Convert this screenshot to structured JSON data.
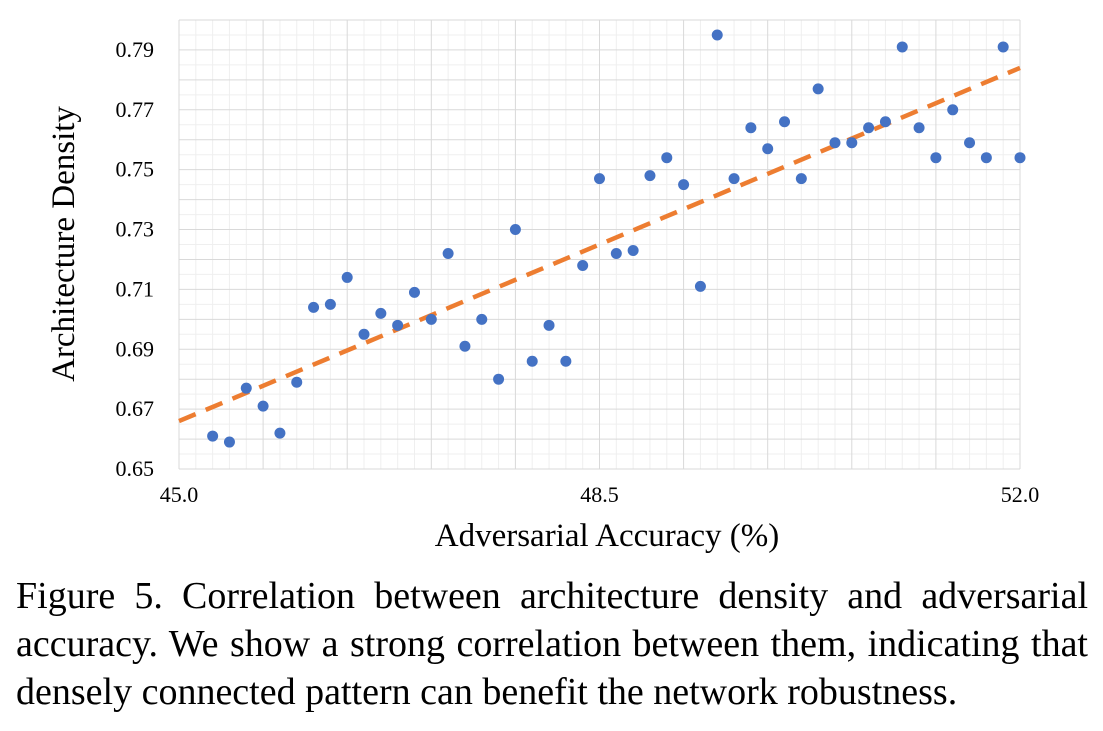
{
  "chart_data": {
    "type": "scatter",
    "xlabel": "Adversarial Accuracy (%)",
    "ylabel": "Architecture Density",
    "xlim": [
      45.0,
      52.0
    ],
    "ylim": [
      0.65,
      0.8
    ],
    "x_ticks": [
      "45.0",
      "48.5",
      "52.0"
    ],
    "y_ticks": [
      "0.65",
      "0.67",
      "0.69",
      "0.71",
      "0.73",
      "0.75",
      "0.77",
      "0.79"
    ],
    "grid": true,
    "point_color": "#4472C4",
    "trendline": {
      "style": "dashed",
      "color": "#ED7D31",
      "x": [
        45.0,
        52.0
      ],
      "y": [
        0.666,
        0.784
      ]
    },
    "points": [
      {
        "x": 45.28,
        "y": 0.661
      },
      {
        "x": 45.42,
        "y": 0.659
      },
      {
        "x": 45.56,
        "y": 0.677
      },
      {
        "x": 45.7,
        "y": 0.671
      },
      {
        "x": 45.84,
        "y": 0.662
      },
      {
        "x": 45.98,
        "y": 0.679
      },
      {
        "x": 46.12,
        "y": 0.704
      },
      {
        "x": 46.26,
        "y": 0.705
      },
      {
        "x": 46.4,
        "y": 0.714
      },
      {
        "x": 46.54,
        "y": 0.695
      },
      {
        "x": 46.68,
        "y": 0.702
      },
      {
        "x": 46.82,
        "y": 0.698
      },
      {
        "x": 46.96,
        "y": 0.709
      },
      {
        "x": 47.1,
        "y": 0.7
      },
      {
        "x": 47.24,
        "y": 0.722
      },
      {
        "x": 47.38,
        "y": 0.691
      },
      {
        "x": 47.52,
        "y": 0.7
      },
      {
        "x": 47.66,
        "y": 0.68
      },
      {
        "x": 47.8,
        "y": 0.73
      },
      {
        "x": 47.94,
        "y": 0.686
      },
      {
        "x": 48.08,
        "y": 0.698
      },
      {
        "x": 48.22,
        "y": 0.686
      },
      {
        "x": 48.36,
        "y": 0.718
      },
      {
        "x": 48.5,
        "y": 0.747
      },
      {
        "x": 48.64,
        "y": 0.722
      },
      {
        "x": 48.78,
        "y": 0.723
      },
      {
        "x": 48.92,
        "y": 0.748
      },
      {
        "x": 49.06,
        "y": 0.754
      },
      {
        "x": 49.2,
        "y": 0.745
      },
      {
        "x": 49.34,
        "y": 0.711
      },
      {
        "x": 49.48,
        "y": 0.795
      },
      {
        "x": 49.62,
        "y": 0.747
      },
      {
        "x": 49.76,
        "y": 0.764
      },
      {
        "x": 49.9,
        "y": 0.757
      },
      {
        "x": 50.04,
        "y": 0.766
      },
      {
        "x": 50.18,
        "y": 0.747
      },
      {
        "x": 50.32,
        "y": 0.777
      },
      {
        "x": 50.46,
        "y": 0.759
      },
      {
        "x": 50.6,
        "y": 0.759
      },
      {
        "x": 50.74,
        "y": 0.764
      },
      {
        "x": 50.88,
        "y": 0.766
      },
      {
        "x": 51.02,
        "y": 0.791
      },
      {
        "x": 51.16,
        "y": 0.764
      },
      {
        "x": 51.3,
        "y": 0.754
      },
      {
        "x": 51.44,
        "y": 0.77
      },
      {
        "x": 51.58,
        "y": 0.759
      },
      {
        "x": 51.72,
        "y": 0.754
      },
      {
        "x": 51.86,
        "y": 0.791
      },
      {
        "x": 52.0,
        "y": 0.754
      }
    ]
  },
  "caption": "Figure 5. Correlation between architecture density and adversarial accuracy.  We show a strong correlation between them, indicating that densely connected pattern can benefit the network robustness."
}
